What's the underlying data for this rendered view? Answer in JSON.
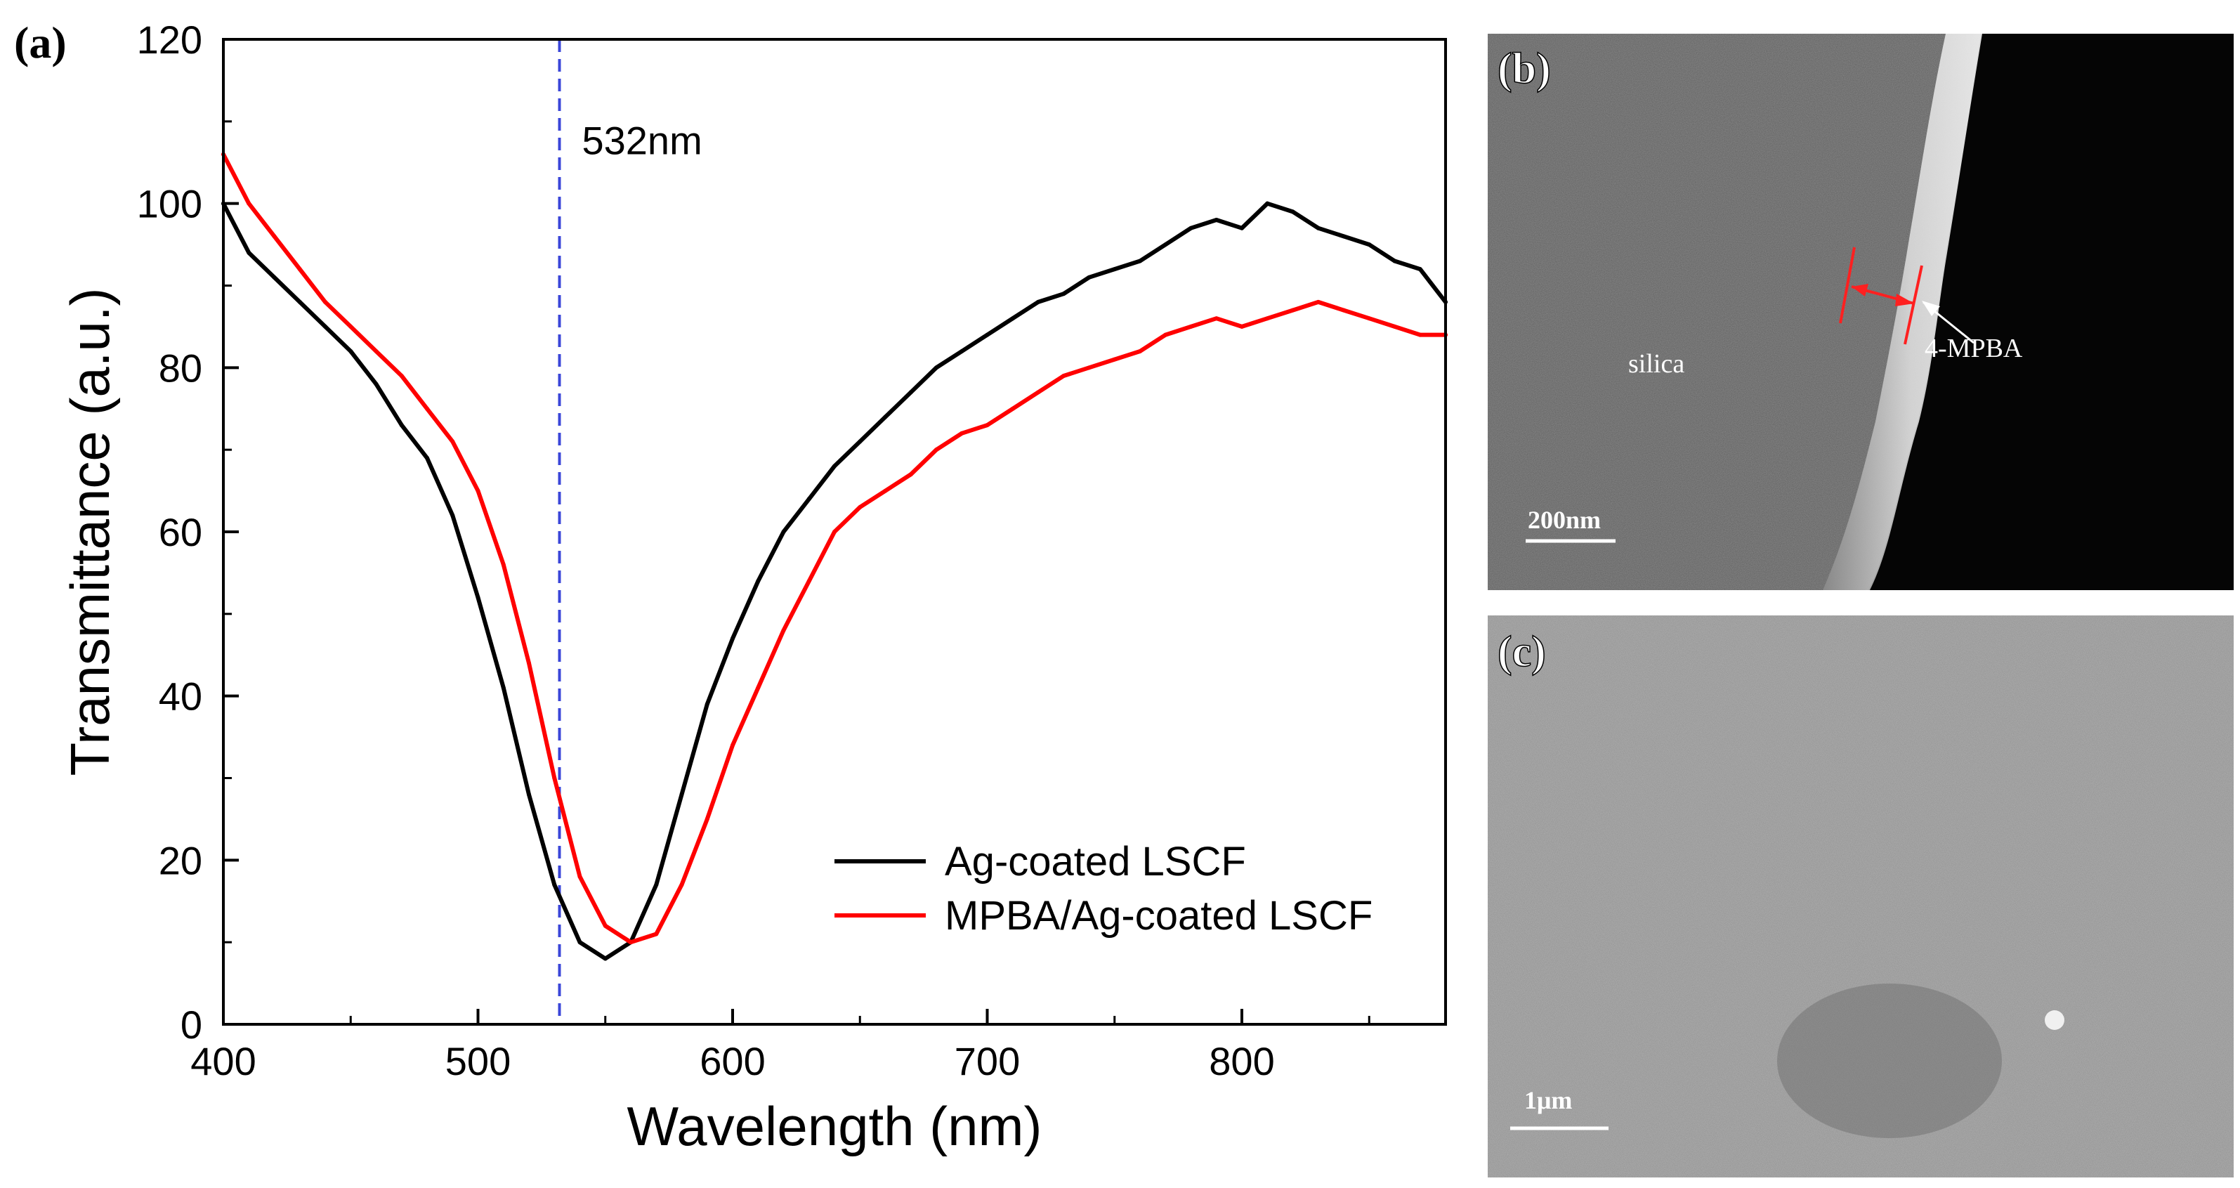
{
  "chart_data": {
    "type": "line",
    "panel_label": "(a)",
    "title": "",
    "xlabel": "Wavelength (nm)",
    "ylabel": "Transmittance (a.u.)",
    "xlim": [
      400,
      880
    ],
    "ylim": [
      0,
      120
    ],
    "xticks": [
      400,
      500,
      600,
      700,
      800
    ],
    "yticks": [
      0,
      20,
      40,
      60,
      80,
      100,
      120
    ],
    "grid": false,
    "legend_position": "bottom-right",
    "annotation": {
      "label": "532nm",
      "x": 532,
      "style": "dashed",
      "color": "#3a46d8"
    },
    "series": [
      {
        "name": "Ag-coated LSCF",
        "color": "#000000",
        "x": [
          400,
          410,
          420,
          430,
          440,
          450,
          460,
          470,
          480,
          490,
          500,
          510,
          520,
          530,
          540,
          550,
          560,
          570,
          580,
          590,
          600,
          610,
          620,
          630,
          640,
          650,
          660,
          670,
          680,
          690,
          700,
          710,
          720,
          730,
          740,
          750,
          760,
          770,
          780,
          790,
          800,
          810,
          820,
          830,
          840,
          850,
          860,
          870,
          880
        ],
        "values": [
          100,
          94,
          91,
          88,
          85,
          82,
          78,
          73,
          69,
          62,
          52,
          41,
          28,
          17,
          10,
          8,
          10,
          17,
          28,
          39,
          47,
          54,
          60,
          64,
          68,
          71,
          74,
          77,
          80,
          82,
          84,
          86,
          88,
          89,
          91,
          92,
          93,
          95,
          97,
          98,
          97,
          100,
          99,
          97,
          96,
          95,
          93,
          92,
          88
        ]
      },
      {
        "name": "MPBA/Ag-coated LSCF",
        "color": "#ff0000",
        "x": [
          400,
          410,
          420,
          430,
          440,
          450,
          460,
          470,
          480,
          490,
          500,
          510,
          520,
          530,
          540,
          550,
          560,
          570,
          580,
          590,
          600,
          610,
          620,
          630,
          640,
          650,
          660,
          670,
          680,
          690,
          700,
          710,
          720,
          730,
          740,
          750,
          760,
          770,
          780,
          790,
          800,
          810,
          820,
          830,
          840,
          850,
          860,
          870,
          880
        ],
        "values": [
          106,
          100,
          96,
          92,
          88,
          85,
          82,
          79,
          75,
          71,
          65,
          56,
          44,
          30,
          18,
          12,
          10,
          11,
          17,
          25,
          34,
          41,
          48,
          54,
          60,
          63,
          65,
          67,
          70,
          72,
          73,
          75,
          77,
          79,
          80,
          81,
          82,
          84,
          85,
          86,
          85,
          86,
          87,
          88,
          87,
          86,
          85,
          84,
          84
        ]
      }
    ]
  },
  "sem_panels": [
    {
      "label": "(b)",
      "annotations": [
        "silica",
        "4-MPBA"
      ],
      "scale_bar": "200nm"
    },
    {
      "label": "(c)",
      "scale_bar": "1μm"
    }
  ]
}
